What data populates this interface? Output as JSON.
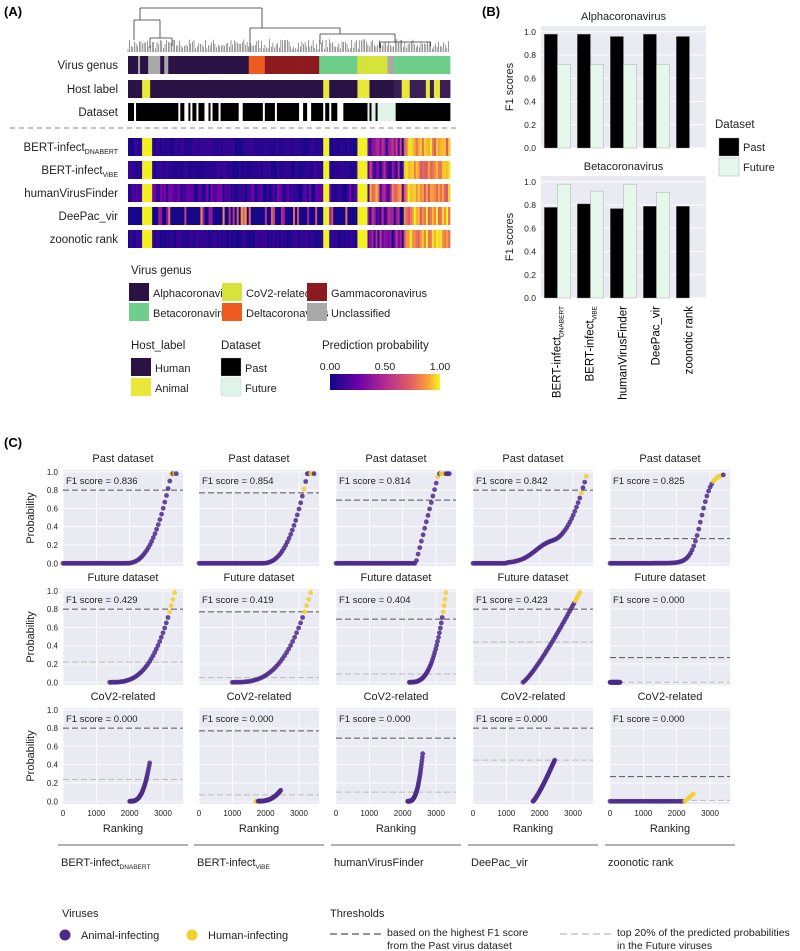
{
  "panel_labels": {
    "a": "(A)",
    "b": "(B)",
    "c": "(C)"
  },
  "panel_a": {
    "rows_top": [
      "Virus genus",
      "Host label",
      "Dataset"
    ],
    "rows_bottom": [
      "BERT-infect",
      "BERT-infect",
      "humanVirusFinder",
      "DeePac_vir",
      "zoonotic rank"
    ],
    "row_subscripts": [
      "DNABERT",
      "ViBE",
      "",
      "",
      ""
    ],
    "legend_genus": {
      "title": "Virus genus",
      "items": [
        {
          "label": "Alphacoronavirus",
          "color": "#2b1245"
        },
        {
          "label": "CoV2-related",
          "color": "#d5e33a"
        },
        {
          "label": "Gammacoronavirus",
          "color": "#8c1b20"
        },
        {
          "label": "Betacoronavirus",
          "color": "#6fcf8a"
        },
        {
          "label": "Deltacoronavirus",
          "color": "#ef5a21"
        },
        {
          "label": "Unclassified",
          "color": "#a9a9a9"
        }
      ]
    },
    "legend_host": {
      "title": "Host_label",
      "items": [
        {
          "label": "Human",
          "color": "#2b1245"
        },
        {
          "label": "Animal",
          "color": "#e9e83a"
        }
      ]
    },
    "legend_dataset": {
      "title": "Dataset",
      "items": [
        {
          "label": "Past",
          "color": "#000000"
        },
        {
          "label": "Future",
          "color": "#dff3e8"
        }
      ]
    },
    "legend_prob": {
      "title": "Prediction probability",
      "ticks": [
        "0.00",
        "0.50",
        "1.00"
      ]
    }
  },
  "chart_data": [
    {
      "type": "bar",
      "title": "Alphacoronavirus",
      "ylabel": "F1 scores",
      "ylim": [
        0,
        1.05
      ],
      "yticks": [
        "0.0",
        "0.2",
        "0.4",
        "0.6",
        "0.8",
        "1.0"
      ],
      "categories": [
        "BERT-infect",
        "BERT-infect",
        "humanVirusFinder",
        "DeePac_vir",
        "zoonotic rank"
      ],
      "category_subscripts": [
        "DNABERT",
        "ViBE",
        "",
        "",
        ""
      ],
      "series": [
        {
          "name": "Past",
          "color": "#000000",
          "values": [
            0.98,
            0.98,
            0.96,
            0.98,
            0.96
          ]
        },
        {
          "name": "Future",
          "color": "#e6f7ec",
          "values": [
            0.72,
            0.72,
            0.72,
            0.72,
            0.0
          ]
        }
      ],
      "legend": {
        "title": "Dataset",
        "entries": [
          "Past",
          "Future"
        ]
      }
    },
    {
      "type": "bar",
      "title": "Betacoronavirus",
      "ylabel": "F1 scores",
      "ylim": [
        0,
        1.05
      ],
      "yticks": [
        "0.0",
        "0.2",
        "0.4",
        "0.6",
        "0.8",
        "1.0"
      ],
      "categories": [
        "BERT-infect",
        "BERT-infect",
        "humanVirusFinder",
        "DeePac_vir",
        "zoonotic rank"
      ],
      "category_subscripts": [
        "DNABERT",
        "ViBE",
        "",
        "",
        ""
      ],
      "series": [
        {
          "name": "Past",
          "color": "#000000",
          "values": [
            0.78,
            0.81,
            0.77,
            0.79,
            0.79
          ]
        },
        {
          "name": "Future",
          "color": "#e6f7ec",
          "values": [
            0.98,
            0.92,
            0.98,
            0.91,
            0.0
          ]
        }
      ]
    },
    {
      "type": "scatter",
      "ylabel": "Probability",
      "xlabel": "Ranking",
      "xlim": [
        0,
        3600
      ],
      "ylim": [
        -0.03,
        1.02
      ],
      "xticks": [
        0,
        1000,
        2000,
        3000
      ],
      "yticks": [
        "0.0",
        "0.2",
        "0.4",
        "0.6",
        "0.8",
        "1.0"
      ],
      "row_titles": [
        "Past dataset",
        "Future dataset",
        "CoV2-related"
      ],
      "models": [
        {
          "name": "BERT-infect",
          "sub": "DNABERT",
          "f1": [
            "F1 score = 0.836",
            "F1 score = 0.429",
            "F1 score = 0.000"
          ],
          "thr_dark": 0.8,
          "thr_light": [
            null,
            0.22,
            0.24
          ]
        },
        {
          "name": "BERT-infect",
          "sub": "ViBE",
          "f1": [
            "F1 score = 0.854",
            "F1 score = 0.419",
            "F1 score = 0.000"
          ],
          "thr_dark": 0.77,
          "thr_light": [
            null,
            0.05,
            0.07
          ]
        },
        {
          "name": "humanVirusFinder",
          "sub": "",
          "f1": [
            "F1 score = 0.814",
            "F1 score = 0.404",
            "F1 score = 0.000"
          ],
          "thr_dark": 0.69,
          "thr_light": [
            null,
            0.09,
            0.1
          ]
        },
        {
          "name": "DeePac_vir",
          "sub": "",
          "f1": [
            "F1 score = 0.842",
            "F1 score = 0.423",
            "F1 score = 0.000"
          ],
          "thr_dark": 0.8,
          "thr_light": [
            null,
            0.44,
            0.45
          ]
        },
        {
          "name": "zoonotic rank",
          "sub": "",
          "f1": [
            "F1 score = 0.825",
            "F1 score = 0.000",
            "F1 score = 0.000"
          ],
          "thr_dark": 0.27,
          "thr_light": [
            null,
            0.0,
            0.01
          ]
        }
      ],
      "legend": {
        "viruses_title": "Viruses",
        "viruses": [
          {
            "label": "Animal-infecting",
            "color": "#4b2a8a"
          },
          {
            "label": "Human-infecting",
            "color": "#f2cf2c"
          }
        ],
        "thresholds_title": "Thresholds",
        "thresholds": [
          {
            "label_1": "based on the highest F1 score",
            "label_2": "from the Past virus dataset",
            "color": "#555555"
          },
          {
            "label_1": "top 20% of the predicted probabilities",
            "label_2": "in the Future viruses",
            "color": "#bbbbbb"
          }
        ]
      }
    }
  ]
}
